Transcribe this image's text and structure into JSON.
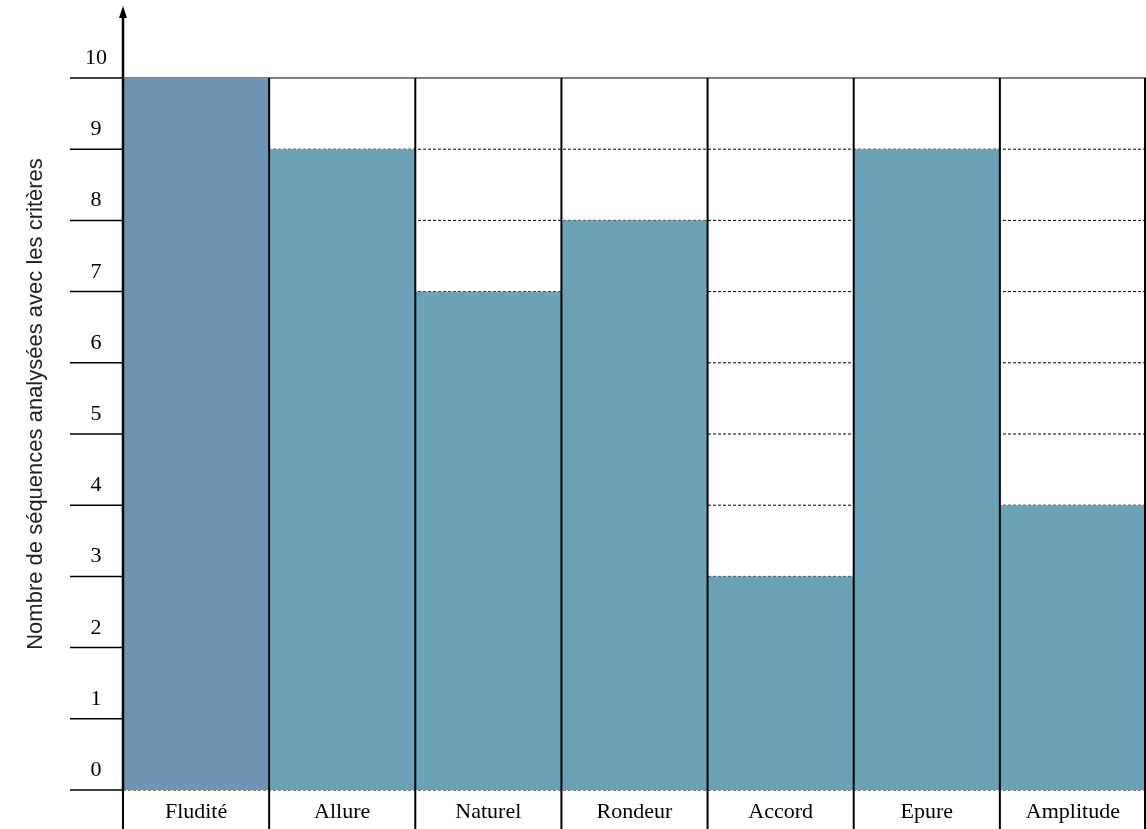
{
  "chart_data": {
    "type": "bar",
    "ylabel": "Nombre de séquences analysées avec les critères",
    "categories": [
      "Fludité",
      "Allure",
      "Naturel",
      "Rondeur",
      "Accord",
      "Epure",
      "Amplitude"
    ],
    "values": [
      10,
      9,
      7,
      8,
      3,
      9,
      4
    ],
    "colors": [
      "#6d94b3",
      "#6ca2b8",
      "#6ca2b8",
      "#6ca2b8",
      "#6ca2b8",
      "#6ca2b8",
      "#6ca2b8"
    ],
    "ylim": [
      0,
      10
    ],
    "yticks": [
      0,
      1,
      2,
      3,
      4,
      5,
      6,
      7,
      8,
      9,
      10
    ],
    "grid": "y"
  }
}
